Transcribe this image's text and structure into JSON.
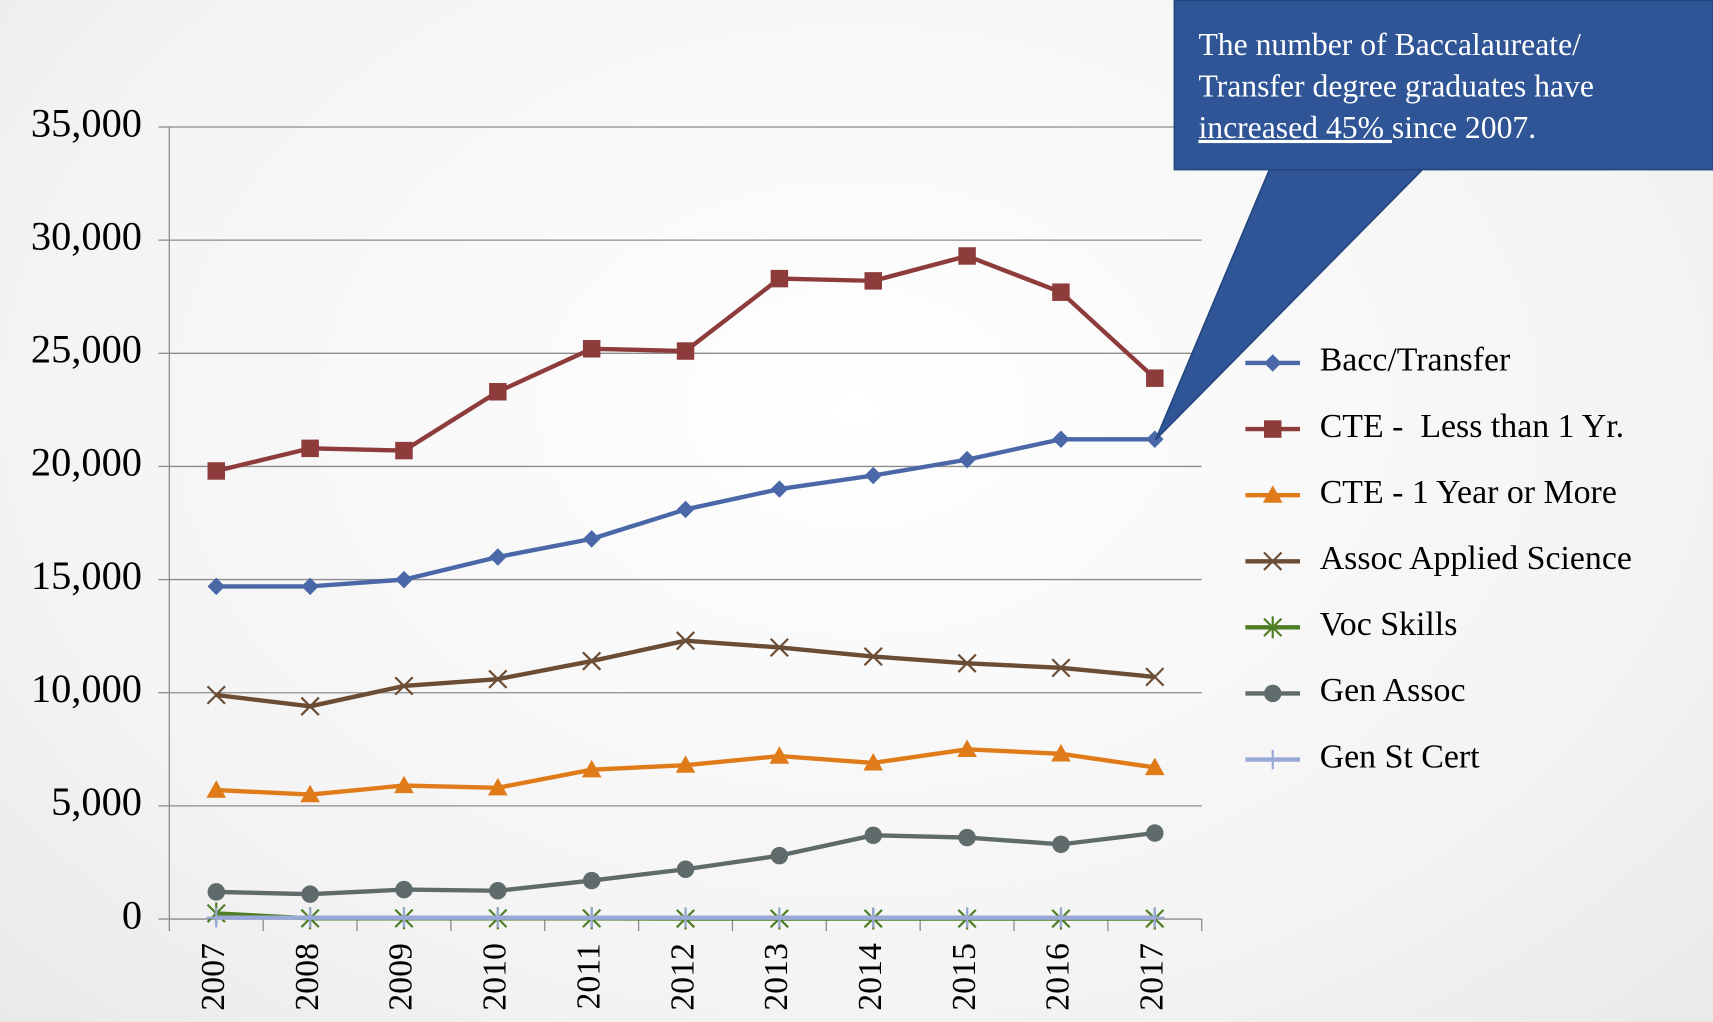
{
  "chart_data": {
    "type": "line",
    "categories": [
      "2007",
      "2008",
      "2009",
      "2010",
      "2011",
      "2012",
      "2013",
      "2014",
      "2015",
      "2016",
      "2017"
    ],
    "ylim": [
      0,
      35000
    ],
    "yticks": [
      {
        "value": 0,
        "label": "0"
      },
      {
        "value": 5000,
        "label": "5,000"
      },
      {
        "value": 10000,
        "label": "10,000"
      },
      {
        "value": 15000,
        "label": "15,000"
      },
      {
        "value": 20000,
        "label": "20,000"
      },
      {
        "value": 25000,
        "label": "25,000"
      },
      {
        "value": 30000,
        "label": "30,000"
      },
      {
        "value": 35000,
        "label": "35,000"
      }
    ],
    "grid": true,
    "legend": "right",
    "series": [
      {
        "name": "Bacc/Transfer",
        "color": "#4a67a8",
        "marker": "diamond",
        "values": [
          14700,
          14700,
          15000,
          16000,
          16800,
          18100,
          19000,
          19600,
          20300,
          21200,
          21200
        ]
      },
      {
        "name": "CTE -  Less than 1 Yr.",
        "color": "#8e3b3b",
        "marker": "square",
        "values": [
          19800,
          20800,
          20700,
          23300,
          25200,
          25100,
          28300,
          28200,
          29300,
          27700,
          23900
        ]
      },
      {
        "name": "CTE - 1 Year or More",
        "color": "#e07b1a",
        "marker": "triangle",
        "values": [
          5700,
          5500,
          5900,
          5800,
          6600,
          6800,
          7200,
          6900,
          7500,
          7300,
          6700
        ]
      },
      {
        "name": "Assoc Applied Science",
        "color": "#6b4c34",
        "marker": "x",
        "values": [
          9900,
          9400,
          10300,
          10600,
          11400,
          12300,
          12000,
          11600,
          11300,
          11100,
          10700
        ]
      },
      {
        "name": "Voc Skills",
        "color": "#4f7d23",
        "marker": "asterisk",
        "values": [
          250,
          30,
          30,
          30,
          30,
          20,
          20,
          20,
          20,
          20,
          20
        ]
      },
      {
        "name": "Gen Assoc",
        "color": "#5f6a6a",
        "marker": "circle",
        "values": [
          1200,
          1100,
          1300,
          1250,
          1700,
          2200,
          2800,
          3700,
          3600,
          3300,
          3800
        ]
      },
      {
        "name": "Gen St Cert",
        "color": "#9aa8d8",
        "marker": "plus",
        "values": [
          60,
          60,
          60,
          60,
          60,
          60,
          60,
          60,
          60,
          60,
          60
        ]
      }
    ],
    "annotation": {
      "lines": [
        "The number of Baccalaureate/",
        "Transfer degree graduates have"
      ],
      "underlined": "increased 45% ",
      "tail": "since 2007."
    }
  }
}
